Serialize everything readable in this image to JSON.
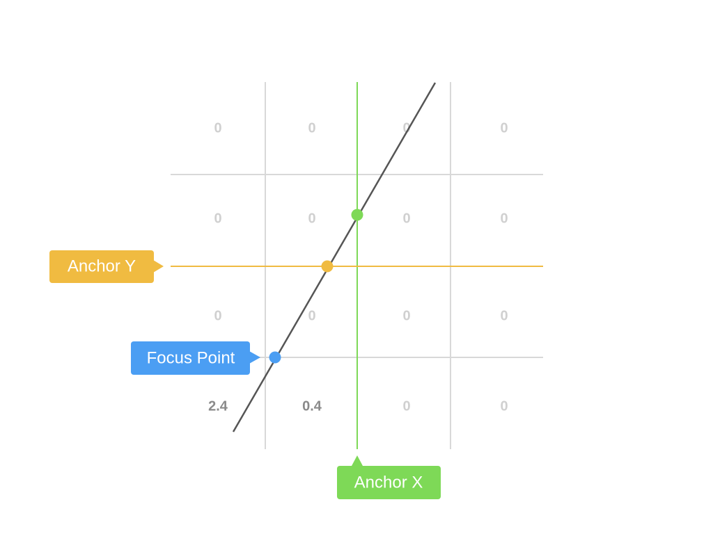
{
  "colors": {
    "grid": "#d8d8d8",
    "diagonal": "#555555",
    "anchor_x": "#7ed957",
    "anchor_y": "#f0bb41",
    "focus": "#4b9ef3",
    "value_faded": "#d0d0d0",
    "value_strong": "#8a8a8a"
  },
  "grid": {
    "rows": [
      [
        "0",
        "0",
        "0",
        "0"
      ],
      [
        "0",
        "0",
        "0",
        "0"
      ],
      [
        "0",
        "0",
        "0",
        "0"
      ],
      [
        "2.4",
        "0.4",
        "0",
        "0"
      ]
    ],
    "emphasis": [
      [
        false,
        false,
        false,
        false
      ],
      [
        false,
        false,
        false,
        false
      ],
      [
        false,
        false,
        false,
        false
      ],
      [
        true,
        true,
        false,
        false
      ]
    ]
  },
  "callouts": {
    "anchor_y": "Anchor Y",
    "anchor_x": "Anchor X",
    "focus_point": "Focus Point"
  }
}
